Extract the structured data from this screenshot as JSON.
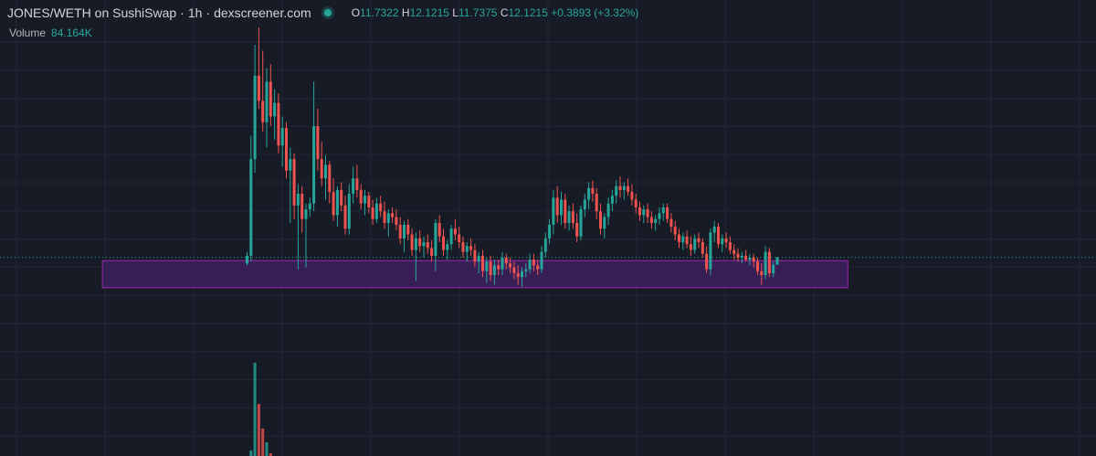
{
  "legend": {
    "symbol": "JONES/WETH on SushiSwap",
    "sep1": "·",
    "interval": "1h",
    "sep2": "·",
    "source": "dexscreener.com",
    "o_label": "O",
    "o_value": "11.7322",
    "h_label": "H",
    "h_value": "12.1215",
    "l_label": "L",
    "l_value": "11.7375",
    "c_label": "C",
    "c_value": "12.1215",
    "change": "+0.3893 (+3.32%)"
  },
  "volume": {
    "label": "Volume",
    "value": "84.164K"
  },
  "colors": {
    "background": "#171b26",
    "grid": "#232734",
    "up": "#26a69a",
    "down": "#ef5350",
    "zone_fill": "#3d1f5e",
    "zone_stroke": "#9c27b0",
    "price_line": "#26a69a"
  },
  "chart_data": {
    "type": "candlestick",
    "title": "JONES/WETH on SushiSwap · 1h · dexscreener.com",
    "ylim": [
      7.0,
      24.0
    ],
    "last_price": 12.12,
    "grid": true,
    "candles": [
      [
        11.8,
        12.4,
        11.7,
        12.2
      ],
      [
        12.2,
        18.4,
        11.9,
        17.2
      ],
      [
        17.2,
        23.1,
        16.5,
        21.5
      ],
      [
        21.5,
        24.0,
        19.8,
        20.2
      ],
      [
        20.2,
        22.8,
        18.6,
        19.1
      ],
      [
        19.1,
        21.9,
        17.8,
        21.2
      ],
      [
        21.2,
        22.1,
        18.9,
        19.4
      ],
      [
        19.4,
        20.8,
        18.2,
        20.1
      ],
      [
        20.1,
        20.6,
        17.5,
        17.9
      ],
      [
        17.9,
        19.4,
        16.8,
        18.8
      ],
      [
        18.8,
        19.1,
        16.2,
        16.6
      ],
      [
        16.6,
        17.8,
        13.9,
        17.2
      ],
      [
        17.2,
        17.5,
        14.1,
        14.8
      ],
      [
        14.8,
        15.9,
        11.5,
        15.4
      ],
      [
        15.4,
        15.8,
        13.4,
        14.1
      ],
      [
        14.1,
        14.9,
        11.6,
        14.6
      ],
      [
        14.6,
        15.2,
        14.2,
        14.9
      ],
      [
        14.9,
        21.2,
        14.5,
        18.9
      ],
      [
        18.9,
        19.8,
        16.6,
        17.2
      ],
      [
        17.2,
        18.1,
        15.8,
        16.2
      ],
      [
        16.2,
        17.4,
        15.1,
        16.9
      ],
      [
        16.9,
        17.1,
        14.9,
        15.5
      ],
      [
        15.5,
        16.2,
        14.0,
        14.3
      ],
      [
        14.3,
        15.8,
        13.7,
        15.6
      ],
      [
        15.6,
        16.0,
        14.5,
        14.8
      ],
      [
        14.8,
        15.3,
        13.3,
        13.6
      ],
      [
        13.6,
        15.9,
        13.3,
        15.4
      ],
      [
        15.4,
        16.8,
        14.9,
        16.2
      ],
      [
        16.2,
        16.9,
        15.2,
        15.6
      ],
      [
        15.6,
        15.9,
        14.6,
        14.9
      ],
      [
        14.9,
        15.6,
        14.3,
        15.3
      ],
      [
        15.3,
        15.5,
        14.4,
        14.7
      ],
      [
        14.7,
        15.1,
        13.8,
        14.1
      ],
      [
        14.1,
        15.2,
        13.9,
        14.9
      ],
      [
        14.9,
        15.3,
        14.2,
        14.5
      ],
      [
        14.5,
        15.0,
        13.6,
        13.9
      ],
      [
        13.9,
        14.6,
        13.2,
        14.4
      ],
      [
        14.4,
        14.7,
        13.9,
        14.2
      ],
      [
        14.2,
        14.6,
        13.5,
        13.8
      ],
      [
        13.8,
        14.2,
        12.8,
        13.1
      ],
      [
        13.1,
        14.0,
        12.4,
        13.8
      ],
      [
        13.8,
        14.1,
        13.0,
        13.3
      ],
      [
        13.3,
        13.6,
        12.2,
        12.5
      ],
      [
        12.5,
        13.4,
        10.9,
        13.1
      ],
      [
        13.1,
        13.5,
        12.4,
        12.7
      ],
      [
        12.7,
        13.2,
        12.1,
        12.9
      ],
      [
        12.9,
        13.3,
        12.3,
        12.6
      ],
      [
        12.6,
        13.0,
        11.9,
        12.2
      ],
      [
        12.2,
        14.1,
        11.4,
        13.9
      ],
      [
        13.9,
        14.3,
        12.9,
        13.2
      ],
      [
        13.2,
        13.6,
        12.2,
        12.5
      ],
      [
        12.5,
        13.0,
        12.0,
        12.8
      ],
      [
        12.8,
        13.8,
        12.5,
        13.6
      ],
      [
        13.6,
        14.1,
        13.0,
        13.3
      ],
      [
        13.3,
        13.7,
        12.6,
        12.9
      ],
      [
        12.9,
        13.2,
        12.1,
        12.4
      ],
      [
        12.4,
        12.9,
        11.9,
        12.7
      ],
      [
        12.7,
        13.1,
        12.2,
        12.5
      ],
      [
        12.5,
        12.8,
        11.6,
        11.9
      ],
      [
        11.9,
        12.4,
        11.3,
        12.2
      ],
      [
        12.2,
        12.5,
        11.1,
        11.4
      ],
      [
        11.4,
        12.1,
        10.8,
        11.9
      ],
      [
        11.9,
        12.2,
        10.9,
        11.2
      ],
      [
        11.2,
        12.0,
        10.7,
        11.7
      ],
      [
        11.7,
        12.0,
        11.2,
        11.5
      ],
      [
        11.5,
        12.4,
        11.2,
        12.1
      ],
      [
        12.1,
        12.3,
        11.5,
        11.8
      ],
      [
        11.8,
        12.1,
        11.3,
        11.6
      ],
      [
        11.6,
        11.9,
        11.0,
        11.3
      ],
      [
        11.3,
        11.7,
        10.7,
        11.1
      ],
      [
        11.1,
        11.6,
        10.6,
        11.4
      ],
      [
        11.4,
        11.8,
        11.1,
        11.5
      ],
      [
        11.5,
        12.3,
        11.3,
        12.0
      ],
      [
        12.0,
        12.3,
        11.4,
        11.7
      ],
      [
        11.7,
        12.0,
        11.2,
        11.5
      ],
      [
        11.5,
        12.7,
        11.3,
        12.4
      ],
      [
        12.4,
        13.4,
        12.1,
        13.1
      ],
      [
        13.1,
        14.1,
        12.8,
        13.8
      ],
      [
        13.8,
        15.6,
        13.3,
        15.2
      ],
      [
        15.2,
        15.8,
        13.9,
        14.3
      ],
      [
        14.3,
        15.5,
        13.8,
        15.1
      ],
      [
        15.1,
        15.4,
        13.6,
        13.9
      ],
      [
        13.9,
        14.8,
        13.5,
        14.5
      ],
      [
        14.5,
        14.9,
        13.6,
        13.9
      ],
      [
        13.9,
        14.4,
        12.9,
        13.2
      ],
      [
        13.2,
        14.8,
        13.0,
        14.6
      ],
      [
        14.6,
        15.4,
        14.2,
        15.1
      ],
      [
        15.1,
        16.0,
        14.6,
        15.7
      ],
      [
        15.7,
        16.1,
        15.0,
        15.4
      ],
      [
        15.4,
        15.7,
        14.1,
        14.5
      ],
      [
        14.5,
        14.9,
        13.3,
        13.6
      ],
      [
        13.6,
        14.4,
        13.1,
        14.2
      ],
      [
        14.2,
        15.2,
        13.8,
        14.9
      ],
      [
        14.9,
        15.6,
        14.5,
        15.3
      ],
      [
        15.3,
        16.1,
        14.9,
        15.8
      ],
      [
        15.8,
        16.3,
        15.2,
        15.6
      ],
      [
        15.6,
        16.0,
        15.1,
        15.8
      ],
      [
        15.8,
        16.2,
        15.3,
        15.5
      ],
      [
        15.5,
        15.9,
        14.8,
        15.1
      ],
      [
        15.1,
        15.4,
        14.4,
        14.7
      ],
      [
        14.7,
        15.0,
        14.0,
        14.3
      ],
      [
        14.3,
        14.8,
        13.9,
        14.6
      ],
      [
        14.6,
        14.9,
        13.9,
        14.2
      ],
      [
        14.2,
        14.5,
        13.6,
        13.9
      ],
      [
        13.9,
        14.3,
        13.5,
        14.1
      ],
      [
        14.1,
        14.7,
        13.8,
        14.4
      ],
      [
        14.4,
        14.9,
        14.0,
        14.7
      ],
      [
        14.7,
        14.9,
        13.9,
        14.1
      ],
      [
        14.1,
        14.4,
        13.4,
        13.7
      ],
      [
        13.7,
        14.0,
        13.0,
        13.3
      ],
      [
        13.3,
        13.6,
        12.6,
        12.9
      ],
      [
        12.9,
        13.4,
        12.5,
        13.2
      ],
      [
        13.2,
        13.5,
        12.6,
        12.8
      ],
      [
        12.8,
        13.2,
        12.2,
        12.5
      ],
      [
        12.5,
        13.3,
        12.3,
        13.1
      ],
      [
        13.1,
        13.4,
        12.6,
        12.9
      ],
      [
        12.9,
        13.1,
        12.1,
        12.3
      ],
      [
        12.3,
        12.7,
        11.3,
        11.5
      ],
      [
        11.5,
        13.6,
        11.2,
        13.4
      ],
      [
        13.4,
        14.0,
        12.9,
        13.7
      ],
      [
        13.7,
        13.9,
        12.6,
        12.8
      ],
      [
        12.8,
        13.3,
        12.4,
        13.1
      ],
      [
        13.1,
        13.4,
        12.6,
        12.9
      ],
      [
        12.9,
        13.2,
        12.3,
        12.5
      ],
      [
        12.5,
        12.8,
        12.0,
        12.3
      ],
      [
        12.3,
        12.6,
        11.9,
        12.1
      ],
      [
        12.1,
        12.4,
        11.8,
        12.2
      ],
      [
        12.2,
        12.5,
        11.9,
        12.0
      ],
      [
        12.0,
        12.3,
        11.7,
        12.1
      ],
      [
        12.1,
        12.3,
        11.6,
        11.9
      ],
      [
        11.9,
        12.1,
        11.2,
        11.4
      ],
      [
        11.4,
        11.8,
        10.7,
        11.2
      ],
      [
        11.2,
        12.7,
        11.0,
        12.4
      ],
      [
        12.4,
        12.6,
        11.1,
        11.3
      ],
      [
        11.3,
        11.9,
        11.1,
        11.74
      ],
      [
        11.7322,
        12.1215,
        11.7375,
        12.1215
      ]
    ],
    "support_zone": {
      "low": 10.55,
      "high": 11.95,
      "start_index": -8,
      "end_index": 144
    },
    "volume": [
      0.04,
      0.9,
      4.1,
      2.6,
      1.7,
      1.2,
      0.8,
      0.6,
      0.4,
      0.3,
      0.3,
      0.2,
      0.2,
      0.2,
      0.15,
      0.1,
      0.1,
      0.6,
      0.3,
      0.2
    ]
  }
}
